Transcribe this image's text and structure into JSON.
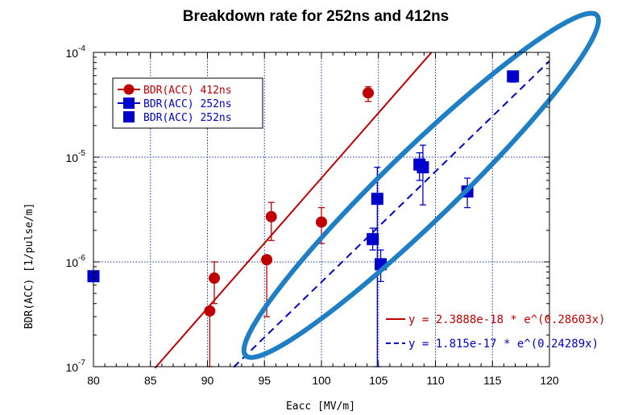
{
  "chart_data": {
    "type": "scatter",
    "title": "Breakdown rate for 252ns and 412ns",
    "xlabel": "Eacc  [MV/m]",
    "ylabel": "BDR(ACC)   [1/pulse/m]",
    "xlim": [
      80,
      120
    ],
    "ylim": [
      1e-07,
      0.0001
    ],
    "yscale": "log",
    "grid": true,
    "x_ticks": [
      "80",
      "85",
      "90",
      "95",
      "100",
      "105",
      "110",
      "115",
      "120"
    ],
    "y_ticks": [
      {
        "value": 1e-07,
        "base": "10",
        "exp": "-7"
      },
      {
        "value": 1e-06,
        "base": "10",
        "exp": "-6"
      },
      {
        "value": 1e-05,
        "base": "10",
        "exp": "-5"
      },
      {
        "value": 0.0001,
        "base": "10",
        "exp": "-4"
      }
    ],
    "legend_position": "top-left",
    "legend": [
      {
        "label": "BDR(ACC)  412ns",
        "color": "#c00000",
        "marker": "circle",
        "line": true
      },
      {
        "label": "BDR(ACC)  252ns",
        "color": "#0000cc",
        "marker": "square",
        "line": true
      },
      {
        "label": "BDR(ACC)  252ns",
        "color": "#0000cc",
        "marker": "square",
        "line": false
      }
    ],
    "series": [
      {
        "label": "BDR(ACC)  412ns",
        "color": "#c00000",
        "marker": "circle",
        "points": [
          {
            "x": 90.2,
            "y": 3.4e-07,
            "lo": 1e-07,
            "hi": 3.4e-07
          },
          {
            "x": 90.6,
            "y": 7e-07,
            "lo": 4e-07,
            "hi": 1e-06
          },
          {
            "x": 95.2,
            "y": 1.05e-06,
            "lo": 3e-07,
            "hi": 1.05e-06
          },
          {
            "x": 95.6,
            "y": 2.7e-06,
            "lo": 1.6e-06,
            "hi": 3.7e-06
          },
          {
            "x": 100.0,
            "y": 2.4e-06,
            "lo": 1.5e-06,
            "hi": 3.3e-06
          },
          {
            "x": 104.1,
            "y": 4.1e-05,
            "lo": 3.4e-05,
            "hi": 4.7e-05
          }
        ]
      },
      {
        "label": "BDR(ACC)  252ns",
        "color": "#0000cc",
        "marker": "square",
        "points": [
          {
            "x": 80.0,
            "y": 7.3e-07,
            "lo": 7.3e-07,
            "hi": 7.3e-07
          },
          {
            "x": 104.5,
            "y": 1.65e-06,
            "lo": 1.3e-06,
            "hi": 2.1e-06
          },
          {
            "x": 104.9,
            "y": 4e-06,
            "lo": 1e-07,
            "hi": 8e-06
          },
          {
            "x": 105.2,
            "y": 9.5e-07,
            "lo": 6.5e-07,
            "hi": 1.3e-06
          },
          {
            "x": 108.6,
            "y": 8.5e-06,
            "lo": 6e-06,
            "hi": 1.1e-05
          },
          {
            "x": 108.9,
            "y": 8e-06,
            "lo": 3.5e-06,
            "hi": 1.3e-05
          },
          {
            "x": 112.8,
            "y": 4.7e-06,
            "lo": 3.3e-06,
            "hi": 6.3e-06
          },
          {
            "x": 116.8,
            "y": 5.9e-05,
            "lo": 5.2e-05,
            "hi": 6.6e-05
          }
        ]
      }
    ],
    "fits": [
      {
        "label": "y = 2.3888e-18 * e^(0.28603x)",
        "a": 2.3888e-18,
        "b": 0.28603,
        "x_start": 85.4,
        "x_end": 120,
        "color": "#c00000",
        "dash": false
      },
      {
        "label": "y = 1.815e-17 * e^(0.24289x)",
        "a": 1.815e-17,
        "b": 0.24289,
        "x_start": 92.3,
        "x_end": 120,
        "color": "#0000cc",
        "dash": true
      }
    ],
    "highlight_ellipse_color": "#1f7fc4"
  }
}
